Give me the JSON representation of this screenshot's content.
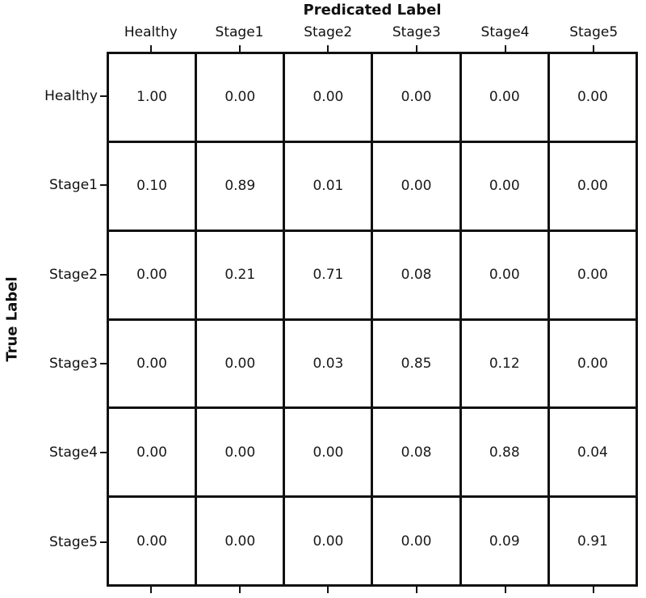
{
  "chart_data": {
    "type": "heatmap",
    "subtype": "confusion-matrix",
    "title": "Predicated Label",
    "xlabel": "Predicated Label",
    "ylabel": "True Label",
    "x_categories": [
      "Healthy",
      "Stage1",
      "Stage2",
      "Stage3",
      "Stage4",
      "Stage5"
    ],
    "y_categories": [
      "Healthy",
      "Stage1",
      "Stage2",
      "Stage3",
      "Stage4",
      "Stage5"
    ],
    "matrix": [
      [
        1.0,
        0.0,
        0.0,
        0.0,
        0.0,
        0.0
      ],
      [
        0.1,
        0.89,
        0.01,
        0.0,
        0.0,
        0.0
      ],
      [
        0.0,
        0.21,
        0.71,
        0.08,
        0.0,
        0.0
      ],
      [
        0.0,
        0.0,
        0.03,
        0.85,
        0.12,
        0.0
      ],
      [
        0.0,
        0.0,
        0.0,
        0.08,
        0.88,
        0.04
      ],
      [
        0.0,
        0.0,
        0.0,
        0.0,
        0.09,
        0.91
      ]
    ],
    "value_format": "0.00",
    "colors": {
      "cell_background": "#ffffff",
      "grid_lines": "#111111",
      "text": "#1a1a1a",
      "figure_background": "#ffffff"
    },
    "layout": {
      "grid": "on",
      "legend": "none",
      "ticks": [
        "top",
        "left",
        "bottom"
      ]
    }
  }
}
